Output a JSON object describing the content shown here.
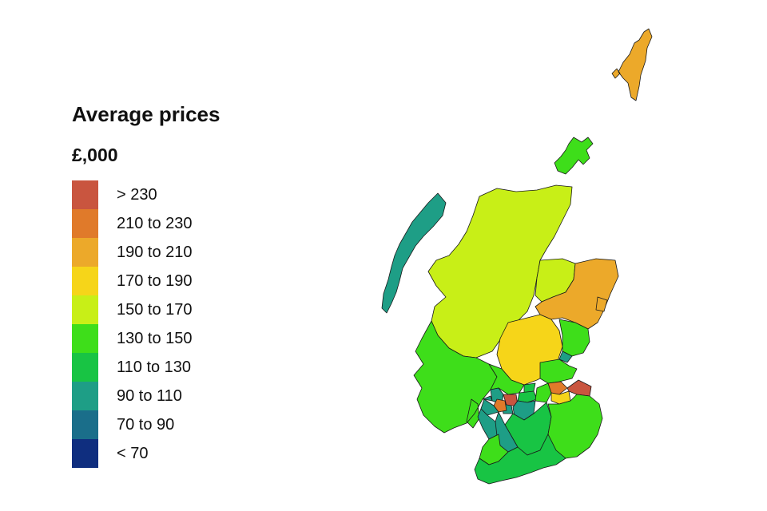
{
  "legend": {
    "title": "Average prices",
    "unit": "£,000",
    "items": [
      {
        "label": "> 230",
        "color": "#c9553f"
      },
      {
        "label": "210 to 230",
        "color": "#e07a2a"
      },
      {
        "label": "190 to 210",
        "color": "#eca92a"
      },
      {
        "label": "170 to 190",
        "color": "#f6d519"
      },
      {
        "label": "150 to 170",
        "color": "#c8ef17"
      },
      {
        "label": "130 to 150",
        "color": "#3ede1a"
      },
      {
        "label": "110 to 130",
        "color": "#18c444"
      },
      {
        "label": "90 to 110",
        "color": "#1e9e86"
      },
      {
        "label": "70 to 90",
        "color": "#1a6e8a"
      },
      {
        "label": "< 70",
        "color": "#0f2e7f"
      }
    ]
  },
  "map": {
    "regions": [
      {
        "name": "Shetland Islands",
        "band": "190 to 210"
      },
      {
        "name": "Orkney Islands",
        "band": "130 to 150"
      },
      {
        "name": "Na h-Eileanan Siar",
        "band": "90 to 110"
      },
      {
        "name": "Highland",
        "band": "150 to 170"
      },
      {
        "name": "Moray",
        "band": "150 to 170"
      },
      {
        "name": "Aberdeenshire",
        "band": "190 to 210"
      },
      {
        "name": "Aberdeen City",
        "band": "190 to 210"
      },
      {
        "name": "Perth and Kinross",
        "band": "170 to 190"
      },
      {
        "name": "Angus",
        "band": "130 to 150"
      },
      {
        "name": "Dundee City",
        "band": "90 to 110"
      },
      {
        "name": "Fife",
        "band": "130 to 150"
      },
      {
        "name": "Argyll and Bute",
        "band": "130 to 150"
      },
      {
        "name": "Stirling",
        "band": "130 to 150"
      },
      {
        "name": "Clackmannanshire",
        "band": "110 to 130"
      },
      {
        "name": "East Dunbartonshire",
        "band": "> 230"
      },
      {
        "name": "West Dunbartonshire",
        "band": "90 to 110"
      },
      {
        "name": "Falkirk",
        "band": "110 to 130"
      },
      {
        "name": "West Lothian",
        "band": "130 to 150"
      },
      {
        "name": "City of Edinburgh",
        "band": "210 to 230"
      },
      {
        "name": "Midlothian",
        "band": "170 to 190"
      },
      {
        "name": "East Lothian",
        "band": "> 230"
      },
      {
        "name": "Glasgow City",
        "band": "90 to 110"
      },
      {
        "name": "East Renfrewshire",
        "band": "210 to 230"
      },
      {
        "name": "Renfrewshire",
        "band": "90 to 110"
      },
      {
        "name": "Inverclyde",
        "band": "90 to 110"
      },
      {
        "name": "North Lanarkshire",
        "band": "90 to 110"
      },
      {
        "name": "South Lanarkshire",
        "band": "110 to 130"
      },
      {
        "name": "North Ayrshire",
        "band": "90 to 110"
      },
      {
        "name": "East Ayrshire",
        "band": "90 to 110"
      },
      {
        "name": "South Ayrshire",
        "band": "130 to 150"
      },
      {
        "name": "Scottish Borders",
        "band": "130 to 150"
      },
      {
        "name": "Dumfries and Galloway",
        "band": "110 to 130"
      }
    ]
  }
}
